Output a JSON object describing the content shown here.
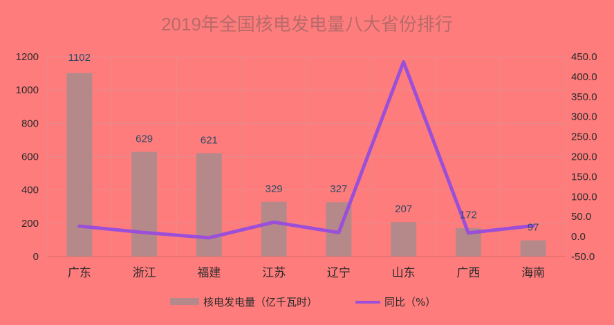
{
  "chart_data": {
    "type": "bar",
    "title": "2019年全国核电发电量八大省份排行",
    "categories": [
      "广东",
      "浙江",
      "福建",
      "江苏",
      "辽宁",
      "山东",
      "广西",
      "海南"
    ],
    "series": [
      {
        "name": "核电发电量（亿千瓦时）",
        "type": "bar",
        "axis": "left",
        "values": [
          1102,
          629,
          621,
          329,
          327,
          207,
          172,
          97
        ],
        "color": "#b5898a"
      },
      {
        "name": "同比（%）",
        "type": "line",
        "axis": "right",
        "values": [
          26,
          10,
          -3,
          36,
          10,
          437,
          9,
          27
        ],
        "color": "#9b4fd9"
      }
    ],
    "y_left": {
      "min": 0,
      "max": 1200,
      "ticks": [
        "0",
        "200",
        "400",
        "600",
        "800",
        "1000",
        "1200"
      ]
    },
    "y_right": {
      "min": -50,
      "max": 450,
      "ticks": [
        "-50.0",
        "0.0",
        "50.0",
        "100.0",
        "150.0",
        "200.0",
        "250.0",
        "300.0",
        "350.0",
        "400.0",
        "450.0"
      ]
    },
    "data_labels": [
      "1102",
      "629",
      "621",
      "329",
      "327",
      "207",
      "172",
      "97"
    ],
    "grid": true,
    "legend_position": "bottom",
    "background": "#ff7c7c"
  }
}
